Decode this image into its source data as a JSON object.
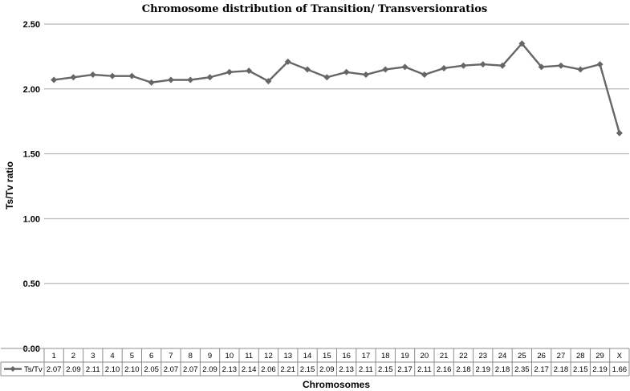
{
  "chart_data": {
    "type": "line",
    "title": "Chromosome distribution of Transition/ Transversionratios",
    "xlabel": "Chromosomes",
    "ylabel": "Ts/Tv ratio",
    "ylim": [
      0,
      2.5
    ],
    "yticks": [
      "0.00",
      "0.50",
      "1.00",
      "1.50",
      "2.00",
      "2.50"
    ],
    "grid": true,
    "legend": "data-table-left",
    "categories": [
      "1",
      "2",
      "3",
      "4",
      "5",
      "6",
      "7",
      "8",
      "9",
      "10",
      "11",
      "12",
      "13",
      "14",
      "15",
      "16",
      "17",
      "18",
      "19",
      "20",
      "21",
      "22",
      "23",
      "24",
      "25",
      "26",
      "27",
      "28",
      "29",
      "X"
    ],
    "series": [
      {
        "name": "Ts/Tv",
        "color": "#666666",
        "values": [
          2.07,
          2.09,
          2.11,
          2.1,
          2.1,
          2.05,
          2.07,
          2.07,
          2.09,
          2.13,
          2.14,
          2.06,
          2.21,
          2.15,
          2.09,
          2.13,
          2.11,
          2.15,
          2.17,
          2.11,
          2.16,
          2.18,
          2.19,
          2.18,
          2.35,
          2.17,
          2.18,
          2.15,
          2.19,
          1.66
        ],
        "labels": [
          "2.07",
          "2.09",
          "2.11",
          "2.10",
          "2.10",
          "2.05",
          "2.07",
          "2.07",
          "2.09",
          "2.13",
          "2.14",
          "2.06",
          "2.21",
          "2.15",
          "2.09",
          "2.13",
          "2.11",
          "2.15",
          "2.17",
          "2.11",
          "2.16",
          "2.18",
          "2.19",
          "2.18",
          "2.35",
          "2.17",
          "2.18",
          "2.15",
          "2.19",
          "1.66"
        ]
      }
    ]
  }
}
